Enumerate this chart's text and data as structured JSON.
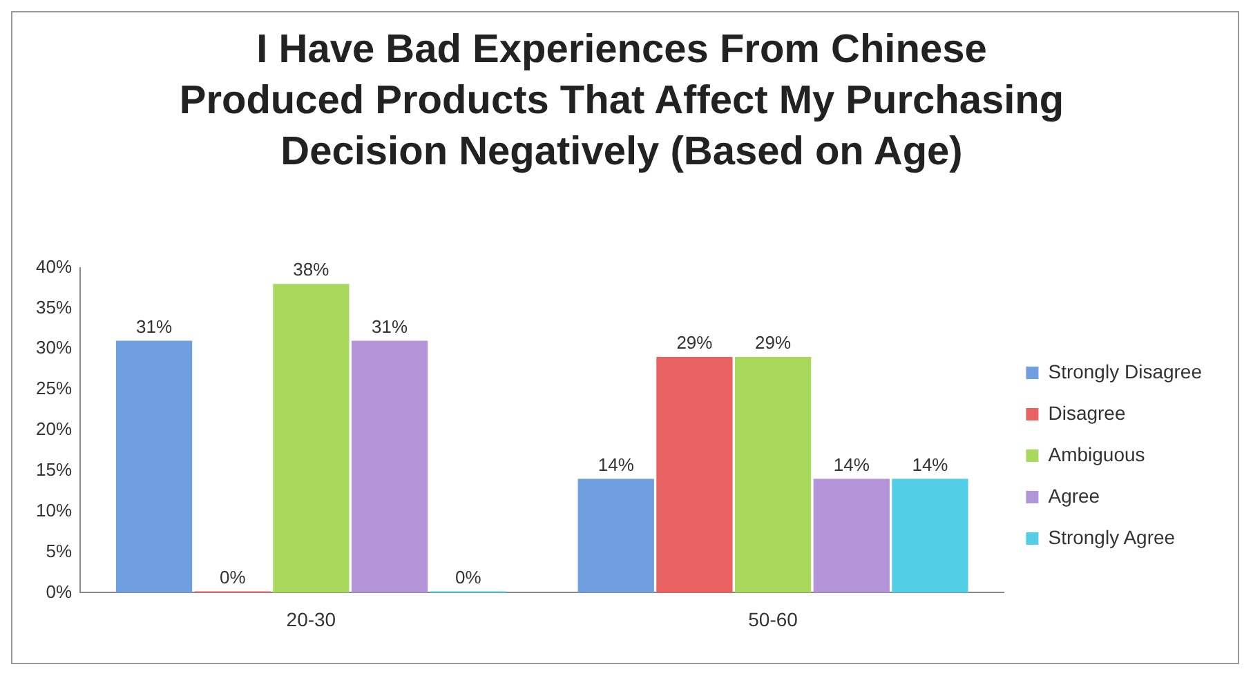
{
  "chart_data": {
    "type": "bar",
    "title": "I Have Bad Experiences From Chinese Produced Products That Affect My Purchasing Decision Negatively (Based on Age)",
    "categories": [
      "20-30",
      "50-60"
    ],
    "series": [
      {
        "name": "Strongly Disagree",
        "color": "#6f9fe0",
        "values": [
          31,
          14
        ],
        "value_labels": [
          "31%",
          "14%"
        ]
      },
      {
        "name": "Disagree",
        "color": "#e86262",
        "values": [
          0,
          29
        ],
        "value_labels": [
          "0%",
          "29%"
        ]
      },
      {
        "name": "Ambiguous",
        "color": "#a8d85c",
        "values": [
          38,
          29
        ],
        "value_labels": [
          "38%",
          "29%"
        ]
      },
      {
        "name": "Agree",
        "color": "#b394d9",
        "values": [
          31,
          14
        ],
        "value_labels": [
          "31%",
          "14%"
        ]
      },
      {
        "name": "Strongly Agree",
        "color": "#52cfe6",
        "values": [
          0,
          14
        ],
        "value_labels": [
          "0%",
          "14%"
        ]
      }
    ],
    "ylim": [
      0,
      40
    ],
    "yticks": [
      {
        "value": 0,
        "label": "0%"
      },
      {
        "value": 5,
        "label": "5%"
      },
      {
        "value": 10,
        "label": "10%"
      },
      {
        "value": 15,
        "label": "15%"
      },
      {
        "value": 20,
        "label": "20%"
      },
      {
        "value": 25,
        "label": "25%"
      },
      {
        "value": 30,
        "label": "30%"
      },
      {
        "value": 35,
        "label": "35%"
      },
      {
        "value": 40,
        "label": "40%"
      }
    ],
    "grid": false,
    "legend": "right"
  }
}
